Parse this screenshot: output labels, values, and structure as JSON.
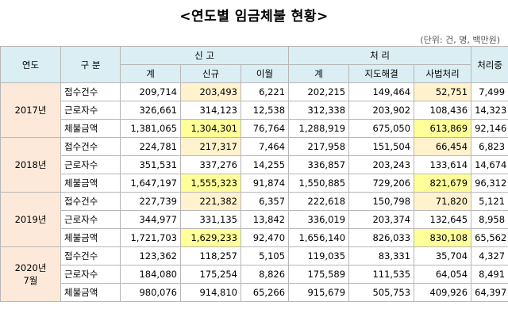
{
  "title": "<연도별 임금체불 현황>",
  "unit": "(단위: 건, 명, 백만원)",
  "headers": {
    "year": "연도",
    "category": "구 분",
    "report": "신 고",
    "process": "처 리",
    "pending": "처리중",
    "sub": [
      "계",
      "신규",
      "이월",
      "계",
      "지도해결",
      "사법처리"
    ]
  },
  "years": [
    {
      "label": "2017년",
      "rows": [
        {
          "category": "접수건수",
          "values": [
            "209,714",
            "203,493",
            "6,221",
            "202,215",
            "149,464",
            "52,751",
            "7,499"
          ],
          "highlight": [
            "",
            "light",
            "",
            "",
            "",
            "light",
            ""
          ]
        },
        {
          "category": "근로자수",
          "values": [
            "326,661",
            "314,123",
            "12,538",
            "312,338",
            "203,902",
            "108,436",
            "14,323"
          ],
          "highlight": [
            "",
            "",
            "",
            "",
            "",
            "",
            ""
          ]
        },
        {
          "category": "체불금액",
          "values": [
            "1,381,065",
            "1,304,301",
            "76,764",
            "1,288,919",
            "675,050",
            "613,869",
            "92,146"
          ],
          "highlight": [
            "",
            "strong",
            "",
            "",
            "",
            "strong",
            ""
          ]
        }
      ]
    },
    {
      "label": "2018년",
      "rows": [
        {
          "category": "접수건수",
          "values": [
            "224,781",
            "217,317",
            "7,464",
            "217,958",
            "151,504",
            "66,454",
            "6,823"
          ],
          "highlight": [
            "",
            "light",
            "",
            "",
            "",
            "light",
            ""
          ]
        },
        {
          "category": "근로자수",
          "values": [
            "351,531",
            "337,276",
            "14,255",
            "336,857",
            "203,243",
            "133,614",
            "14,674"
          ],
          "highlight": [
            "",
            "",
            "",
            "",
            "",
            "",
            ""
          ]
        },
        {
          "category": "체불금액",
          "values": [
            "1,647,197",
            "1,555,323",
            "91,874",
            "1,550,885",
            "729,206",
            "821,679",
            "96,312"
          ],
          "highlight": [
            "",
            "strong",
            "",
            "",
            "",
            "strong",
            ""
          ]
        }
      ]
    },
    {
      "label": "2019년",
      "rows": [
        {
          "category": "접수건수",
          "values": [
            "227,739",
            "221,382",
            "6,357",
            "222,618",
            "150,798",
            "71,820",
            "5,121"
          ],
          "highlight": [
            "",
            "light",
            "",
            "",
            "",
            "light",
            ""
          ]
        },
        {
          "category": "근로자수",
          "values": [
            "344,977",
            "331,135",
            "13,842",
            "336,019",
            "203,374",
            "132,645",
            "8,958"
          ],
          "highlight": [
            "",
            "",
            "",
            "",
            "",
            "",
            ""
          ]
        },
        {
          "category": "체불금액",
          "values": [
            "1,721,703",
            "1,629,233",
            "92,470",
            "1,656,140",
            "826,033",
            "830,108",
            "65,562"
          ],
          "highlight": [
            "",
            "strong",
            "",
            "",
            "",
            "strong",
            ""
          ]
        }
      ]
    },
    {
      "label": "2020년\n7월",
      "rows": [
        {
          "category": "접수건수",
          "values": [
            "123,362",
            "118,257",
            "5,105",
            "119,035",
            "83,331",
            "35,704",
            "4,327"
          ],
          "highlight": [
            "",
            "",
            "",
            "",
            "",
            "",
            ""
          ]
        },
        {
          "category": "근로자수",
          "values": [
            "184,080",
            "175,254",
            "8,826",
            "175,589",
            "111,535",
            "64,054",
            "8,491"
          ],
          "highlight": [
            "",
            "",
            "",
            "",
            "",
            "",
            ""
          ]
        },
        {
          "category": "체불금액",
          "values": [
            "980,076",
            "914,810",
            "65,266",
            "915,679",
            "505,753",
            "409,926",
            "64,397"
          ],
          "highlight": [
            "",
            "",
            "",
            "",
            "",
            "",
            ""
          ]
        }
      ]
    }
  ],
  "colors": {
    "header_bg": "#daeef3",
    "year_bg": "#fde9d9",
    "highlight_strong": "#ffff99",
    "highlight_light": "#fff2cc"
  }
}
